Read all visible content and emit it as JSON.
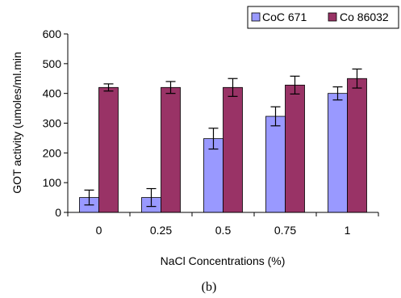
{
  "chart_data": {
    "type": "bar",
    "categories": [
      "0",
      "0.25",
      "0.5",
      "0.75",
      "1"
    ],
    "series": [
      {
        "name": "CoC 671",
        "color": "#9999ff",
        "values": [
          50,
          50,
          248,
          323,
          400
        ],
        "errors": [
          25,
          30,
          35,
          32,
          22
        ]
      },
      {
        "name": "Co 86032",
        "color": "#993366",
        "values": [
          420,
          420,
          420,
          428,
          450
        ],
        "errors": [
          12,
          20,
          30,
          30,
          32
        ]
      }
    ],
    "xlabel": "NaCl Concentrations (%)",
    "ylabel": "GOT activity (umoles/ml.min",
    "ylim": [
      0,
      600
    ],
    "yticks": [
      "0",
      "100",
      "200",
      "300",
      "400",
      "500",
      "600"
    ],
    "grid": false,
    "legend_position": "top-right"
  },
  "caption": "(b)"
}
